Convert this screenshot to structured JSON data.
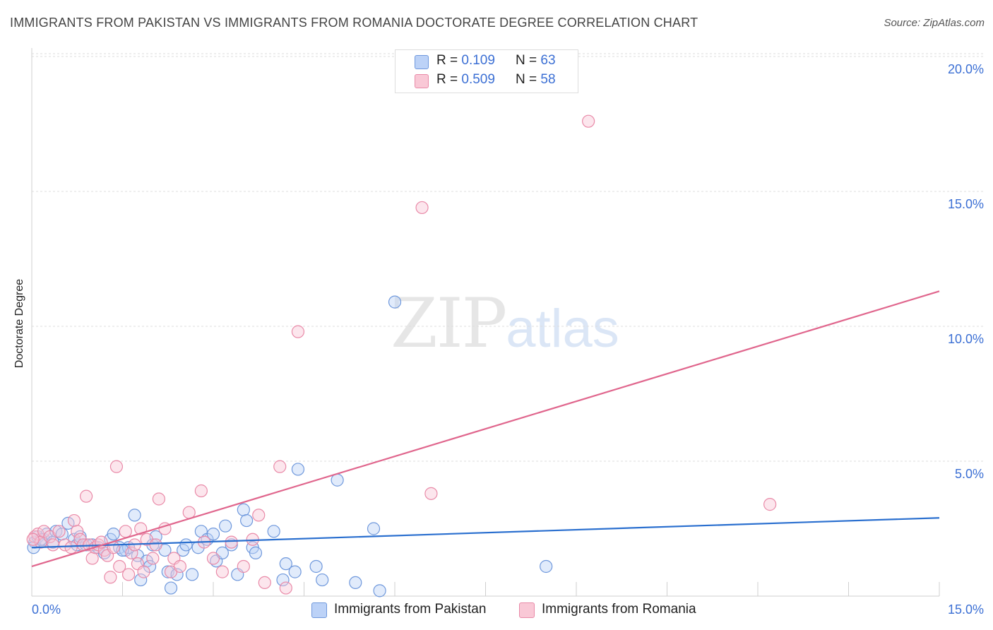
{
  "title": "IMMIGRANTS FROM PAKISTAN VS IMMIGRANTS FROM ROMANIA DOCTORATE DEGREE CORRELATION CHART",
  "source": "Source: ZipAtlas.com",
  "watermark": {
    "zip": "ZIP",
    "atlas": "atlas"
  },
  "legend_top": {
    "rows": [
      {
        "r_label": "R = ",
        "r_value": "0.109",
        "n_label": "N = ",
        "n_value": "63"
      },
      {
        "r_label": "R = ",
        "r_value": "0.509",
        "n_label": "N = ",
        "n_value": "58"
      }
    ]
  },
  "colors": {
    "pakistan_fill": "#bcd2f7",
    "pakistan_stroke": "#6f98dc",
    "pakistan_line": "#2a6fcf",
    "romania_fill": "#f9c8d6",
    "romania_stroke": "#e98aa8",
    "romania_line": "#e0668d",
    "tick_text": "#3b6fd4"
  },
  "chart_data": {
    "type": "scatter",
    "title": "IMMIGRANTS FROM PAKISTAN VS IMMIGRANTS FROM ROMANIA DOCTORATE DEGREE CORRELATION CHART",
    "xlabel": "",
    "ylabel": "Doctorate Degree",
    "xlim": [
      0,
      15
    ],
    "ylim": [
      0,
      20
    ],
    "x_tick_labels": [
      "0.0%",
      "15.0%"
    ],
    "y_ticks": [
      5,
      10,
      15,
      20
    ],
    "y_tick_labels": [
      "5.0%",
      "10.0%",
      "15.0%",
      "20.0%"
    ],
    "grid": true,
    "legend_position": "bottom",
    "series": [
      {
        "name": "Immigrants from Pakistan",
        "R": 0.109,
        "N": 63,
        "trend": [
          [
            0,
            1.8
          ],
          [
            15,
            2.9
          ]
        ],
        "points": [
          [
            0.05,
            2.0
          ],
          [
            0.1,
            2.2
          ],
          [
            0.2,
            2.1
          ],
          [
            0.25,
            2.3
          ],
          [
            0.35,
            2.0
          ],
          [
            0.4,
            2.4
          ],
          [
            0.5,
            2.3
          ],
          [
            0.6,
            2.7
          ],
          [
            0.7,
            2.1
          ],
          [
            0.75,
            1.9
          ],
          [
            0.8,
            2.2
          ],
          [
            0.9,
            1.9
          ],
          [
            1.0,
            1.9
          ],
          [
            1.1,
            1.8
          ],
          [
            1.2,
            1.6
          ],
          [
            1.3,
            2.1
          ],
          [
            1.35,
            2.3
          ],
          [
            1.45,
            1.8
          ],
          [
            1.55,
            1.7
          ],
          [
            1.6,
            1.8
          ],
          [
            1.7,
            3.0
          ],
          [
            1.75,
            1.5
          ],
          [
            1.8,
            0.6
          ],
          [
            1.9,
            1.3
          ],
          [
            1.95,
            1.1
          ],
          [
            2.0,
            1.9
          ],
          [
            2.05,
            2.2
          ],
          [
            2.2,
            1.7
          ],
          [
            2.25,
            0.9
          ],
          [
            2.3,
            0.3
          ],
          [
            2.4,
            0.8
          ],
          [
            2.5,
            1.7
          ],
          [
            2.55,
            1.9
          ],
          [
            2.65,
            0.8
          ],
          [
            2.75,
            1.8
          ],
          [
            2.8,
            2.4
          ],
          [
            2.9,
            2.1
          ],
          [
            3.0,
            2.3
          ],
          [
            3.05,
            1.3
          ],
          [
            3.15,
            1.6
          ],
          [
            3.2,
            2.6
          ],
          [
            3.3,
            1.9
          ],
          [
            3.4,
            0.8
          ],
          [
            3.5,
            3.2
          ],
          [
            3.55,
            2.8
          ],
          [
            3.65,
            1.8
          ],
          [
            3.7,
            1.6
          ],
          [
            4.0,
            2.4
          ],
          [
            4.15,
            0.6
          ],
          [
            4.2,
            1.2
          ],
          [
            4.35,
            0.9
          ],
          [
            4.4,
            4.7
          ],
          [
            4.7,
            1.1
          ],
          [
            4.8,
            0.6
          ],
          [
            5.05,
            4.3
          ],
          [
            5.35,
            0.5
          ],
          [
            5.65,
            2.5
          ],
          [
            5.75,
            0.2
          ],
          [
            6.0,
            10.9
          ],
          [
            8.5,
            1.1
          ],
          [
            0.03,
            1.8
          ],
          [
            0.15,
            2.1
          ],
          [
            1.5,
            1.7
          ]
        ]
      },
      {
        "name": "Immigrants from Romania",
        "R": 0.509,
        "N": 58,
        "trend": [
          [
            0,
            1.1
          ],
          [
            15,
            11.3
          ]
        ],
        "points": [
          [
            0.05,
            2.2
          ],
          [
            0.1,
            2.3
          ],
          [
            0.15,
            2.0
          ],
          [
            0.2,
            2.4
          ],
          [
            0.3,
            2.2
          ],
          [
            0.35,
            1.9
          ],
          [
            0.45,
            2.4
          ],
          [
            0.55,
            1.9
          ],
          [
            0.65,
            1.8
          ],
          [
            0.7,
            2.8
          ],
          [
            0.75,
            2.4
          ],
          [
            0.8,
            2.1
          ],
          [
            0.85,
            1.9
          ],
          [
            0.9,
            3.7
          ],
          [
            0.95,
            1.9
          ],
          [
            1.0,
            1.4
          ],
          [
            1.05,
            1.8
          ],
          [
            1.1,
            1.9
          ],
          [
            1.2,
            1.7
          ],
          [
            1.25,
            1.5
          ],
          [
            1.3,
            0.7
          ],
          [
            1.35,
            1.8
          ],
          [
            1.4,
            4.8
          ],
          [
            1.45,
            1.1
          ],
          [
            1.55,
            2.4
          ],
          [
            1.6,
            0.8
          ],
          [
            1.65,
            1.6
          ],
          [
            1.7,
            1.9
          ],
          [
            1.75,
            1.2
          ],
          [
            1.8,
            2.5
          ],
          [
            1.85,
            0.9
          ],
          [
            1.9,
            2.1
          ],
          [
            2.0,
            1.4
          ],
          [
            2.05,
            1.9
          ],
          [
            2.1,
            3.6
          ],
          [
            2.2,
            2.5
          ],
          [
            2.3,
            0.9
          ],
          [
            2.35,
            1.4
          ],
          [
            2.45,
            1.1
          ],
          [
            2.6,
            3.1
          ],
          [
            2.8,
            3.9
          ],
          [
            2.85,
            2.0
          ],
          [
            3.0,
            1.4
          ],
          [
            3.15,
            0.9
          ],
          [
            3.3,
            2.0
          ],
          [
            3.5,
            1.1
          ],
          [
            3.65,
            2.1
          ],
          [
            3.75,
            3.0
          ],
          [
            3.85,
            0.5
          ],
          [
            4.1,
            4.8
          ],
          [
            4.2,
            0.3
          ],
          [
            4.4,
            9.8
          ],
          [
            6.45,
            14.4
          ],
          [
            6.6,
            3.8
          ],
          [
            9.2,
            17.6
          ],
          [
            12.2,
            3.4
          ],
          [
            0.02,
            2.1
          ],
          [
            1.15,
            2.0
          ]
        ]
      }
    ]
  },
  "legend_bottom": {
    "items": [
      "Immigrants from Pakistan",
      "Immigrants from Romania"
    ]
  }
}
